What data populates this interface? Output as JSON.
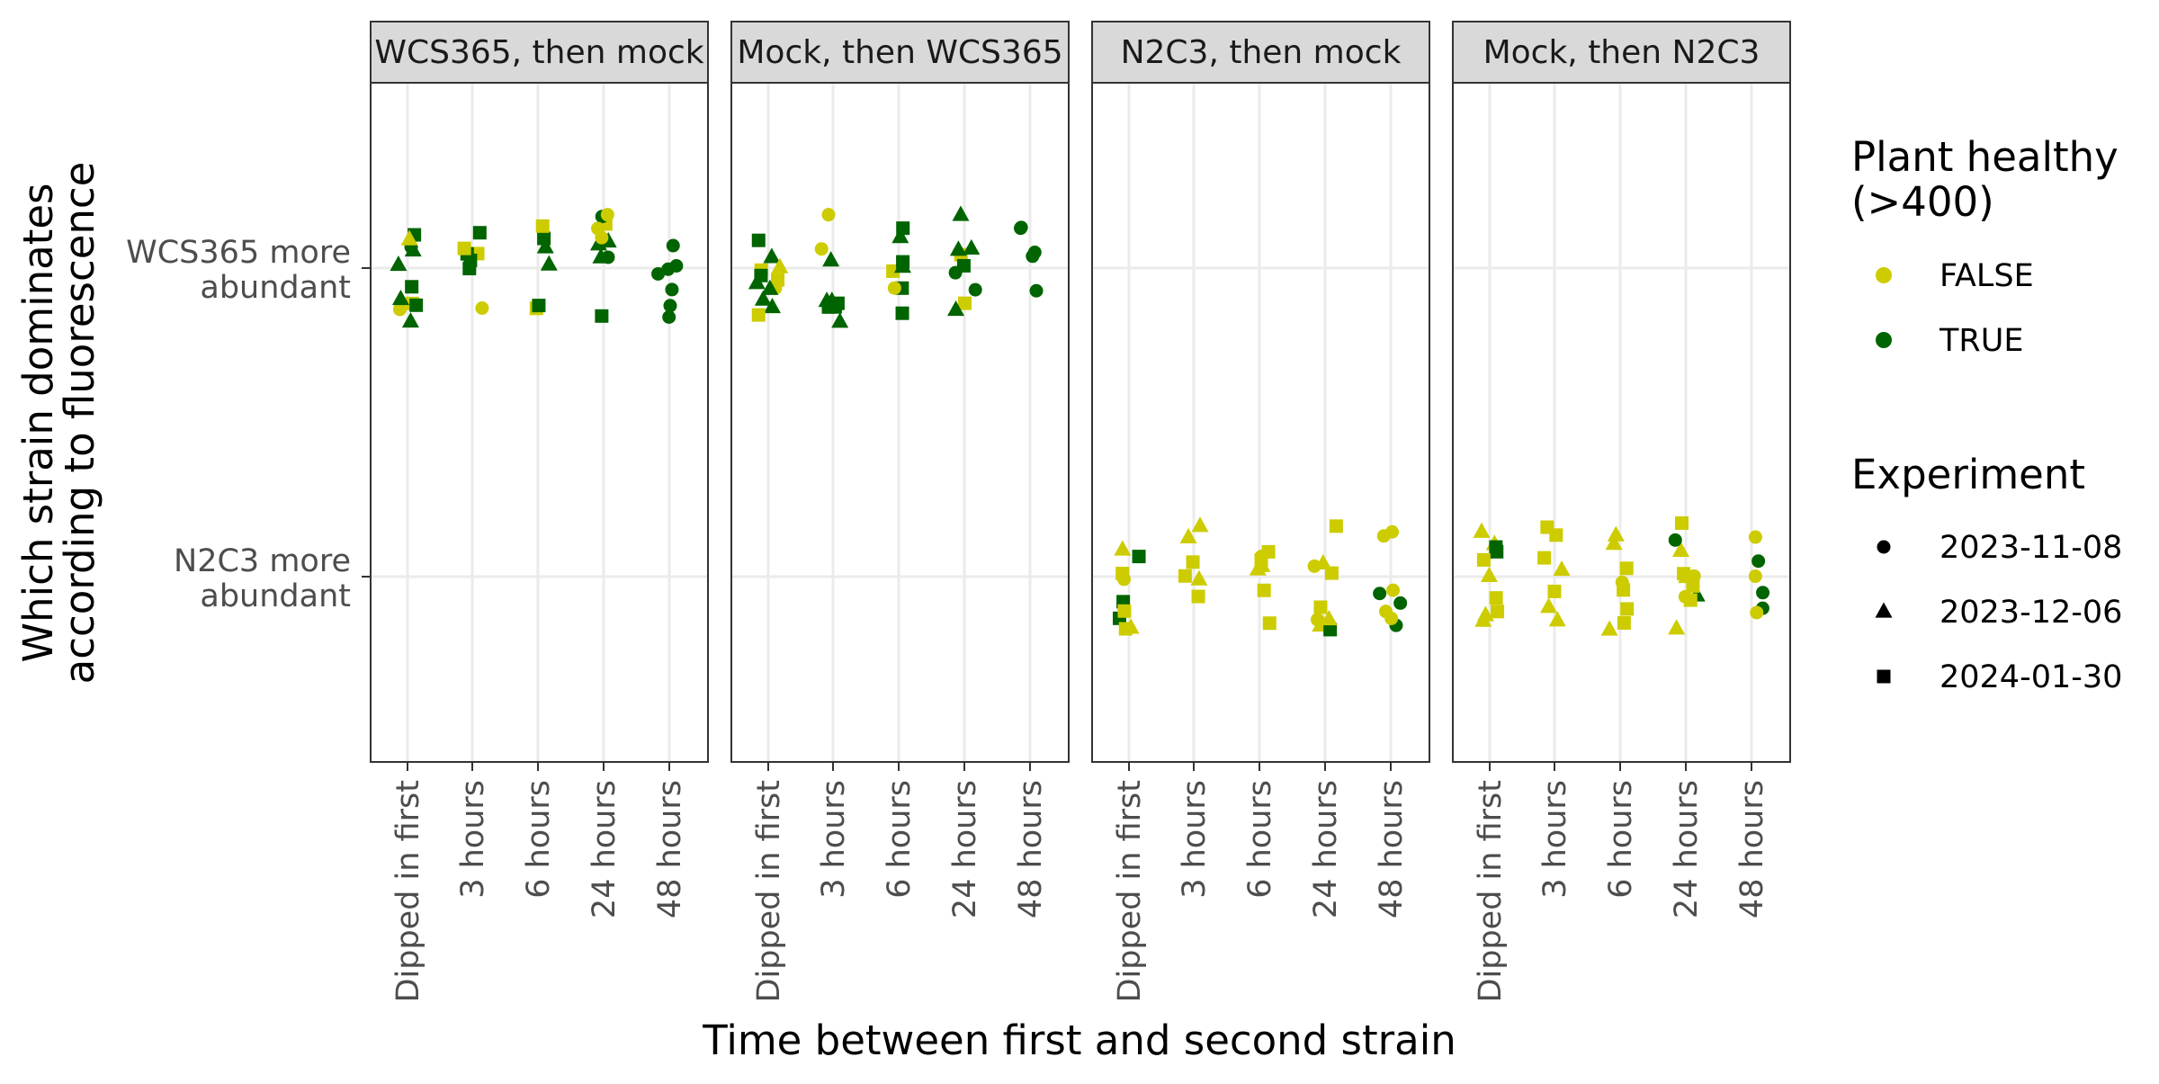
{
  "chart_data": {
    "type": "scatter",
    "xlabel": "Time between first and second strain",
    "ylabel_lines": [
      "Which strain dominates",
      "according to fluorescence"
    ],
    "x_categories": [
      "Dipped in first",
      "3 hours",
      "6 hours",
      "24 hours",
      "48 hours"
    ],
    "y_categories": [
      {
        "key": "N2C3",
        "lines": [
          "N2C3 more",
          "abundant"
        ]
      },
      {
        "key": "WCS365",
        "lines": [
          "WCS365 more",
          "abundant"
        ]
      }
    ],
    "panels": [
      {
        "title": "WCS365, then mock"
      },
      {
        "title": "Mock, then WCS365"
      },
      {
        "title": "N2C3, then mock"
      },
      {
        "title": "Mock, then N2C3"
      }
    ],
    "legend_health": {
      "title_lines": [
        "Plant healthy",
        "(>400)"
      ],
      "entries": [
        {
          "label": "FALSE",
          "color": "#cccc00"
        },
        {
          "label": "TRUE",
          "color": "#006400"
        }
      ]
    },
    "legend_experiment": {
      "title": "Experiment",
      "entries": [
        {
          "label": "2023-11-08",
          "shape": "circle"
        },
        {
          "label": "2023-12-06",
          "shape": "triangle"
        },
        {
          "label": "2024-01-30",
          "shape": "square"
        }
      ]
    },
    "grid": true,
    "legend_position": "right",
    "points": [
      [
        0,
        0,
        1,
        "T",
        "c"
      ],
      [
        0,
        0,
        1,
        "T",
        "t"
      ],
      [
        0,
        0,
        1,
        "T",
        "s"
      ],
      [
        0,
        0,
        1,
        "F",
        "c"
      ],
      [
        0,
        0,
        1,
        "F",
        "s"
      ],
      [
        0,
        0,
        1,
        "T",
        "t"
      ],
      [
        0,
        0,
        1,
        "T",
        "s"
      ],
      [
        0,
        0,
        1,
        "F",
        "t"
      ],
      [
        0,
        0,
        1,
        "T",
        "t"
      ],
      [
        0,
        0,
        1,
        "T",
        "s"
      ],
      [
        0,
        0,
        1,
        "T",
        "t"
      ],
      [
        0,
        1,
        1,
        "F",
        "s"
      ],
      [
        0,
        1,
        1,
        "T",
        "s"
      ],
      [
        0,
        1,
        1,
        "F",
        "c"
      ],
      [
        0,
        1,
        1,
        "T",
        "s"
      ],
      [
        0,
        1,
        1,
        "T",
        "s"
      ],
      [
        0,
        1,
        1,
        "F",
        "s"
      ],
      [
        0,
        1,
        1,
        "T",
        "s"
      ],
      [
        0,
        2,
        1,
        "T",
        "t"
      ],
      [
        0,
        2,
        1,
        "T",
        "s"
      ],
      [
        0,
        2,
        1,
        "F",
        "s"
      ],
      [
        0,
        2,
        1,
        "T",
        "t"
      ],
      [
        0,
        2,
        1,
        "T",
        "s"
      ],
      [
        0,
        2,
        1,
        "F",
        "s"
      ],
      [
        0,
        3,
        1,
        "F",
        "s"
      ],
      [
        0,
        3,
        1,
        "T",
        "c"
      ],
      [
        0,
        3,
        1,
        "T",
        "t"
      ],
      [
        0,
        3,
        1,
        "T",
        "t"
      ],
      [
        0,
        3,
        1,
        "T",
        "s"
      ],
      [
        0,
        3,
        1,
        "T",
        "c"
      ],
      [
        0,
        3,
        1,
        "F",
        "c"
      ],
      [
        0,
        3,
        1,
        "F",
        "c"
      ],
      [
        0,
        3,
        1,
        "T",
        "t"
      ],
      [
        0,
        3,
        1,
        "F",
        "c"
      ],
      [
        0,
        4,
        1,
        "T",
        "c"
      ],
      [
        0,
        4,
        1,
        "T",
        "c"
      ],
      [
        0,
        4,
        1,
        "T",
        "c"
      ],
      [
        0,
        4,
        1,
        "T",
        "c"
      ],
      [
        0,
        4,
        1,
        "T",
        "c"
      ],
      [
        0,
        4,
        1,
        "T",
        "c"
      ],
      [
        0,
        4,
        1,
        "T",
        "c"
      ],
      [
        1,
        0,
        1,
        "F",
        "s"
      ],
      [
        1,
        0,
        1,
        "F",
        "s"
      ],
      [
        1,
        0,
        1,
        "T",
        "t"
      ],
      [
        1,
        0,
        1,
        "T",
        "t"
      ],
      [
        1,
        0,
        1,
        "F",
        "c"
      ],
      [
        1,
        0,
        1,
        "T",
        "t"
      ],
      [
        1,
        0,
        1,
        "F",
        "t"
      ],
      [
        1,
        0,
        1,
        "T",
        "s"
      ],
      [
        1,
        0,
        1,
        "T",
        "t"
      ],
      [
        1,
        0,
        1,
        "T",
        "t"
      ],
      [
        1,
        0,
        1,
        "F",
        "s"
      ],
      [
        1,
        0,
        1,
        "T",
        "s"
      ],
      [
        1,
        1,
        1,
        "T",
        "t"
      ],
      [
        1,
        1,
        1,
        "T",
        "s"
      ],
      [
        1,
        1,
        1,
        "T",
        "t"
      ],
      [
        1,
        1,
        1,
        "T",
        "t"
      ],
      [
        1,
        1,
        1,
        "F",
        "c"
      ],
      [
        1,
        1,
        1,
        "T",
        "s"
      ],
      [
        1,
        1,
        1,
        "T",
        "t"
      ],
      [
        1,
        1,
        1,
        "T",
        "s"
      ],
      [
        1,
        1,
        1,
        "F",
        "c"
      ],
      [
        1,
        2,
        1,
        "F",
        "s"
      ],
      [
        1,
        2,
        1,
        "T",
        "s"
      ],
      [
        1,
        2,
        1,
        "T",
        "t"
      ],
      [
        1,
        2,
        1,
        "T",
        "s"
      ],
      [
        1,
        2,
        1,
        "T",
        "s"
      ],
      [
        1,
        2,
        1,
        "T",
        "t"
      ],
      [
        1,
        2,
        1,
        "T",
        "s"
      ],
      [
        1,
        2,
        1,
        "F",
        "c"
      ],
      [
        1,
        3,
        1,
        "F",
        "s"
      ],
      [
        1,
        3,
        1,
        "T",
        "t"
      ],
      [
        1,
        3,
        1,
        "T",
        "c"
      ],
      [
        1,
        3,
        1,
        "T",
        "c"
      ],
      [
        1,
        3,
        1,
        "F",
        "s"
      ],
      [
        1,
        3,
        1,
        "T",
        "t"
      ],
      [
        1,
        3,
        1,
        "T",
        "s"
      ],
      [
        1,
        3,
        1,
        "T",
        "t"
      ],
      [
        1,
        3,
        1,
        "T",
        "t"
      ],
      [
        1,
        4,
        1,
        "T",
        "c"
      ],
      [
        1,
        4,
        1,
        "T",
        "c"
      ],
      [
        1,
        4,
        1,
        "T",
        "c"
      ],
      [
        1,
        4,
        1,
        "T",
        "c"
      ],
      [
        1,
        4,
        1,
        "T",
        "c"
      ],
      [
        2,
        0,
        0,
        "F",
        "s"
      ],
      [
        2,
        0,
        0,
        "T",
        "s"
      ],
      [
        2,
        0,
        0,
        "T",
        "s"
      ],
      [
        2,
        0,
        0,
        "F",
        "s"
      ],
      [
        2,
        0,
        0,
        "F",
        "t"
      ],
      [
        2,
        0,
        0,
        "F",
        "t"
      ],
      [
        2,
        0,
        0,
        "T",
        "s"
      ],
      [
        2,
        0,
        0,
        "F",
        "s"
      ],
      [
        2,
        0,
        0,
        "F",
        "c"
      ],
      [
        2,
        1,
        0,
        "F",
        "t"
      ],
      [
        2,
        1,
        0,
        "F",
        "s"
      ],
      [
        2,
        1,
        0,
        "F",
        "t"
      ],
      [
        2,
        1,
        0,
        "F",
        "t"
      ],
      [
        2,
        1,
        0,
        "F",
        "s"
      ],
      [
        2,
        1,
        0,
        "F",
        "s"
      ],
      [
        2,
        2,
        0,
        "F",
        "s"
      ],
      [
        2,
        2,
        0,
        "F",
        "s"
      ],
      [
        2,
        2,
        0,
        "F",
        "t"
      ],
      [
        2,
        2,
        0,
        "F",
        "c"
      ],
      [
        2,
        2,
        0,
        "F",
        "s"
      ],
      [
        2,
        2,
        0,
        "F",
        "t"
      ],
      [
        2,
        2,
        0,
        "F",
        "s"
      ],
      [
        2,
        3,
        0,
        "F",
        "c"
      ],
      [
        2,
        3,
        0,
        "F",
        "t"
      ],
      [
        2,
        3,
        0,
        "F",
        "s"
      ],
      [
        2,
        3,
        0,
        "F",
        "t"
      ],
      [
        2,
        3,
        0,
        "F",
        "c"
      ],
      [
        2,
        3,
        0,
        "F",
        "t"
      ],
      [
        2,
        3,
        0,
        "T",
        "s"
      ],
      [
        2,
        3,
        0,
        "F",
        "s"
      ],
      [
        2,
        3,
        0,
        "F",
        "t"
      ],
      [
        2,
        3,
        0,
        "F",
        "s"
      ],
      [
        2,
        4,
        0,
        "F",
        "c"
      ],
      [
        2,
        4,
        0,
        "F",
        "c"
      ],
      [
        2,
        4,
        0,
        "T",
        "c"
      ],
      [
        2,
        4,
        0,
        "T",
        "c"
      ],
      [
        2,
        4,
        0,
        "F",
        "c"
      ],
      [
        2,
        4,
        0,
        "T",
        "c"
      ],
      [
        2,
        4,
        0,
        "F",
        "c"
      ],
      [
        2,
        4,
        0,
        "F",
        "c"
      ],
      [
        3,
        0,
        0,
        "F",
        "t"
      ],
      [
        3,
        0,
        0,
        "T",
        "s"
      ],
      [
        3,
        0,
        0,
        "F",
        "t"
      ],
      [
        3,
        0,
        0,
        "F",
        "s"
      ],
      [
        3,
        0,
        0,
        "F",
        "t"
      ],
      [
        3,
        0,
        0,
        "F",
        "s"
      ],
      [
        3,
        0,
        0,
        "T",
        "s"
      ],
      [
        3,
        0,
        0,
        "F",
        "t"
      ],
      [
        3,
        0,
        0,
        "F",
        "s"
      ],
      [
        3,
        0,
        0,
        "F",
        "t"
      ],
      [
        3,
        1,
        0,
        "F",
        "s"
      ],
      [
        3,
        1,
        0,
        "F",
        "t"
      ],
      [
        3,
        1,
        0,
        "F",
        "s"
      ],
      [
        3,
        1,
        0,
        "F",
        "t"
      ],
      [
        3,
        1,
        0,
        "F",
        "s"
      ],
      [
        3,
        1,
        0,
        "F",
        "s"
      ],
      [
        3,
        1,
        0,
        "F",
        "t"
      ],
      [
        3,
        2,
        0,
        "F",
        "s"
      ],
      [
        3,
        2,
        0,
        "F",
        "t"
      ],
      [
        3,
        2,
        0,
        "F",
        "c"
      ],
      [
        3,
        2,
        0,
        "F",
        "s"
      ],
      [
        3,
        2,
        0,
        "F",
        "t"
      ],
      [
        3,
        2,
        0,
        "F",
        "s"
      ],
      [
        3,
        2,
        0,
        "F",
        "t"
      ],
      [
        3,
        2,
        0,
        "F",
        "s"
      ],
      [
        3,
        3,
        0,
        "F",
        "s"
      ],
      [
        3,
        3,
        0,
        "T",
        "t"
      ],
      [
        3,
        3,
        0,
        "F",
        "c"
      ],
      [
        3,
        3,
        0,
        "F",
        "t"
      ],
      [
        3,
        3,
        0,
        "F",
        "s"
      ],
      [
        3,
        3,
        0,
        "F",
        "t"
      ],
      [
        3,
        3,
        0,
        "T",
        "c"
      ],
      [
        3,
        3,
        0,
        "F",
        "c"
      ],
      [
        3,
        3,
        0,
        "F",
        "s"
      ],
      [
        3,
        3,
        0,
        "F",
        "t"
      ],
      [
        3,
        3,
        0,
        "F",
        "s"
      ],
      [
        3,
        4,
        0,
        "T",
        "c"
      ],
      [
        3,
        4,
        0,
        "F",
        "c"
      ],
      [
        3,
        4,
        0,
        "T",
        "c"
      ],
      [
        3,
        4,
        0,
        "F",
        "c"
      ],
      [
        3,
        4,
        0,
        "T",
        "c"
      ],
      [
        3,
        4,
        0,
        "F",
        "c"
      ]
    ]
  }
}
